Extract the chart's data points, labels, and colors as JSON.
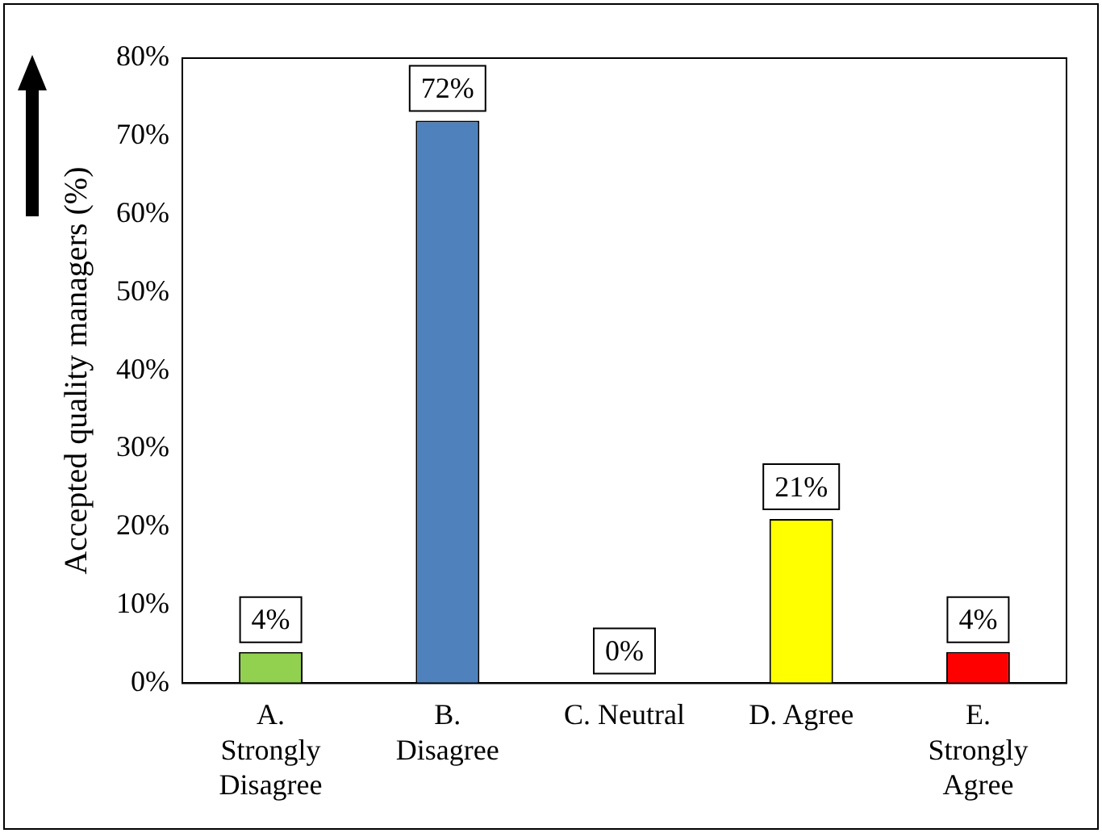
{
  "chart_data": {
    "type": "bar",
    "ylabel": "Accepted quality managers (%)",
    "categories": [
      "A. Strongly Disagree",
      "B. Disagree",
      "C. Neutral",
      "D. Agree",
      "E. Strongly Agree"
    ],
    "values": [
      4,
      72,
      0,
      21,
      4
    ],
    "colors": [
      "#92d050",
      "#4f81bd",
      "#ffc000",
      "#ffff00",
      "#ff0000"
    ],
    "value_labels": [
      "4%",
      "72%",
      "0%",
      "21%",
      "4%"
    ],
    "ylim": [
      0,
      80
    ],
    "yticks": [
      {
        "value": 0,
        "label": "0%"
      },
      {
        "value": 10,
        "label": "10%"
      },
      {
        "value": 20,
        "label": "20%"
      },
      {
        "value": 30,
        "label": "30%"
      },
      {
        "value": 40,
        "label": "40%"
      },
      {
        "value": 50,
        "label": "50%"
      },
      {
        "value": 60,
        "label": "60%"
      },
      {
        "value": 70,
        "label": "70%"
      },
      {
        "value": 80,
        "label": "80%"
      }
    ],
    "grid": false,
    "legend": false
  }
}
